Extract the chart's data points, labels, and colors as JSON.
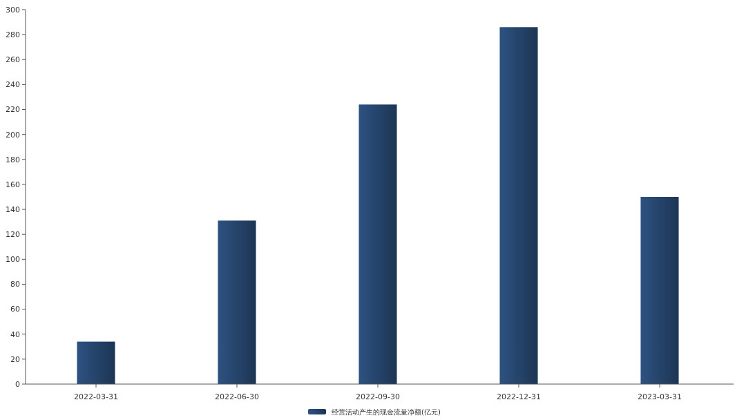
{
  "chart_data": {
    "type": "bar",
    "categories": [
      "2022-03-31",
      "2022-06-30",
      "2022-09-30",
      "2022-12-31",
      "2023-03-31"
    ],
    "series": [
      {
        "name": "经营活动产生的现金流量净额(亿元)",
        "color": "#2d5281",
        "values": [
          34,
          131,
          224,
          286,
          150
        ]
      }
    ],
    "ylim": [
      0,
      300
    ],
    "yticks": [
      0,
      20,
      40,
      60,
      80,
      100,
      120,
      140,
      160,
      180,
      200,
      220,
      240,
      260,
      280,
      300
    ],
    "grid": false,
    "legend": "bottom"
  }
}
